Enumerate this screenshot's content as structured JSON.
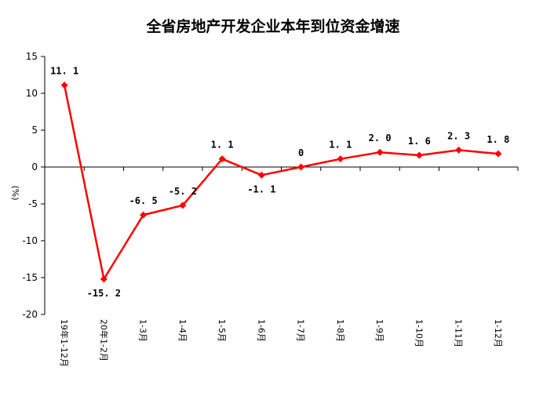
{
  "chart_data": {
    "type": "line",
    "title": "全省房地产开发企业本年到位资金增速",
    "ylabel": "(%)",
    "xlabel": "",
    "categories": [
      "19年1-12月",
      "20年1-2月",
      "1-3月",
      "1-4月",
      "1-5月",
      "1-6月",
      "1-7月",
      "1-8月",
      "1-9月",
      "1-10月",
      "1-11月",
      "1-12月"
    ],
    "series": [
      {
        "values": [
          11.1,
          -15.2,
          -6.5,
          -5.2,
          1.1,
          -1.1,
          0,
          1.1,
          2.0,
          1.6,
          2.3,
          1.8
        ]
      }
    ],
    "data_labels": [
      "11. 1",
      "-15. 2",
      "-6. 5",
      "-5. 2",
      "1. 1",
      "-1. 1",
      "0",
      "1. 1",
      "2. 0",
      "1. 6",
      "2. 3",
      "1. 8"
    ],
    "ylim": [
      -20,
      15
    ],
    "yticks": [
      "15",
      "10",
      "5",
      "0",
      "-5",
      "-10",
      "-15",
      "-20"
    ],
    "grid": false,
    "legend": "none",
    "colors": {
      "line": "#ff0000",
      "marker": "#ff0000",
      "axis": "#000000"
    }
  }
}
